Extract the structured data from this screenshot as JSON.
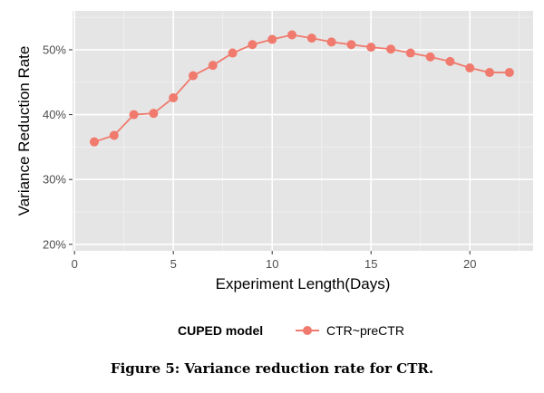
{
  "chart_data": {
    "type": "line",
    "xlabel": "Experiment Length(Days)",
    "ylabel": "Variance Reduction Rate",
    "xlim": [
      -0.1,
      23.2
    ],
    "ylim": [
      19,
      56
    ],
    "x_ticks": [
      0,
      5,
      10,
      15,
      20
    ],
    "x_tick_labels": [
      "0",
      "5",
      "10",
      "15",
      "20"
    ],
    "y_ticks": [
      20,
      30,
      40,
      50
    ],
    "y_tick_labels": [
      "20%",
      "30%",
      "40%",
      "50%"
    ],
    "grid": true,
    "legend_position": "bottom",
    "legend_title": "CUPED model",
    "series": [
      {
        "name": "CTR~preCTR",
        "color": "#f07a6d",
        "x": [
          1,
          2,
          3,
          4,
          5,
          6,
          7,
          8,
          9,
          10,
          11,
          12,
          13,
          14,
          15,
          16,
          17,
          18,
          19,
          20,
          21,
          22
        ],
        "values": [
          35.8,
          36.8,
          40.0,
          40.2,
          42.6,
          46.0,
          47.6,
          49.5,
          50.8,
          51.6,
          52.3,
          51.8,
          51.2,
          50.8,
          50.4,
          50.1,
          49.5,
          48.9,
          48.2,
          47.2,
          46.5,
          46.5
        ]
      }
    ]
  },
  "caption": "Figure 5: Variance reduction rate for CTR."
}
